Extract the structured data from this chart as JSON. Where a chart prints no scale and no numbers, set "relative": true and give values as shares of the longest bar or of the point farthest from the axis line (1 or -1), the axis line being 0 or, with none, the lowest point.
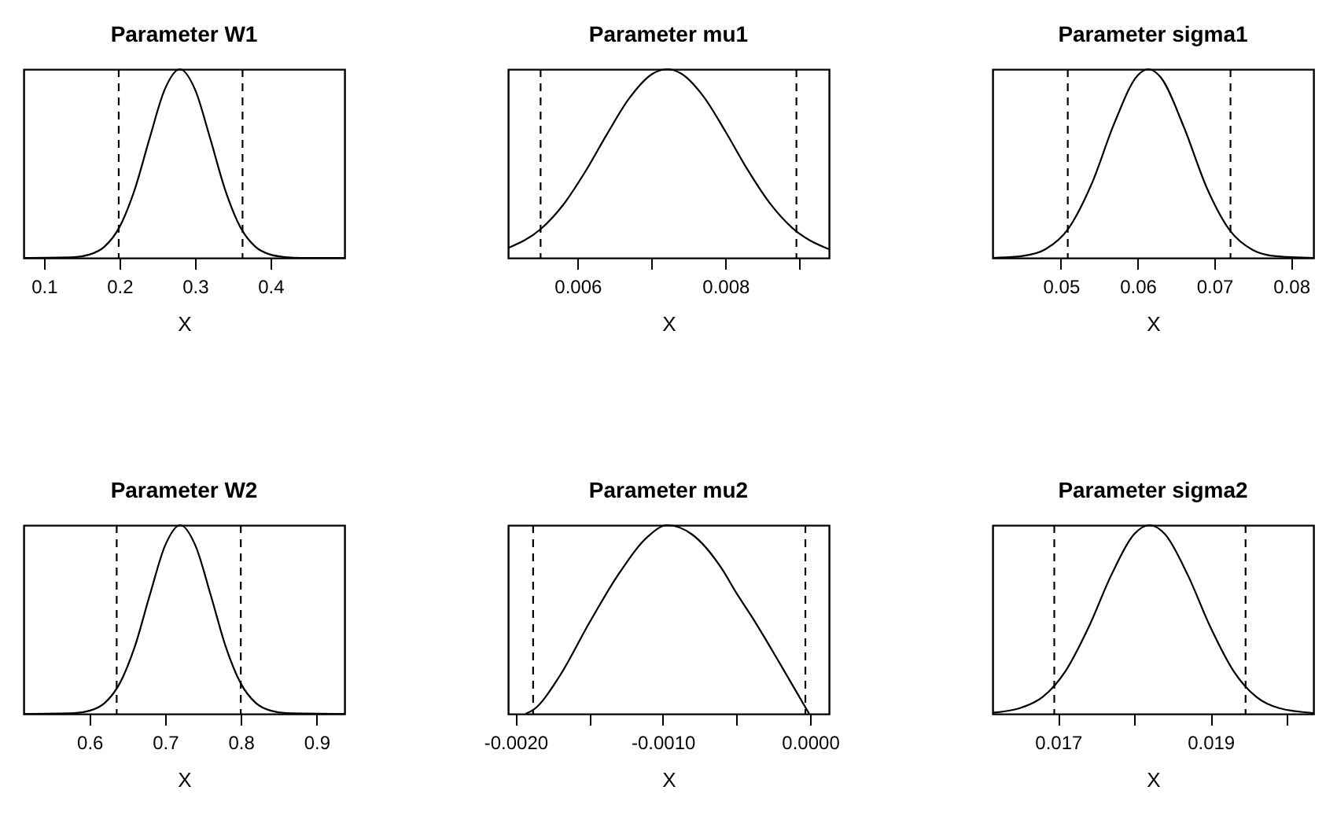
{
  "chart_data": [
    {
      "type": "line",
      "title": "Parameter W1",
      "xlabel": "X",
      "relative": true,
      "xlim": [
        0.073,
        0.498
      ],
      "xticks": [
        0.1,
        0.2,
        0.3,
        0.4
      ],
      "line_style": "solid",
      "marker": "none",
      "grid": false,
      "ref_lines": [
        {
          "axis": "x",
          "value": 0.199,
          "line_style": "dashed",
          "color": "#000000"
        },
        {
          "axis": "x",
          "value": 0.363,
          "line_style": "dashed",
          "color": "#000000"
        }
      ],
      "series": [
        {
          "color": "#000000",
          "x": [
            0.073,
            0.14,
            0.16,
            0.18,
            0.2,
            0.22,
            0.24,
            0.26,
            0.28,
            0.3,
            0.32,
            0.34,
            0.36,
            0.38,
            0.4,
            0.42,
            0.44,
            0.498
          ],
          "values": [
            0,
            0.004,
            0.017,
            0.059,
            0.163,
            0.36,
            0.635,
            0.893,
            1,
            0.893,
            0.635,
            0.36,
            0.163,
            0.059,
            0.017,
            0.004,
            0,
            0
          ]
        }
      ]
    },
    {
      "type": "line",
      "title": "Parameter mu1",
      "xlabel": "X",
      "relative": true,
      "xlim": [
        0.00506,
        0.0094
      ],
      "xticks": [
        0.006,
        {
          "value": 0.007,
          "label": null
        },
        0.008,
        {
          "value": 0.009,
          "label": null
        }
      ],
      "line_style": "solid",
      "marker": "none",
      "grid": false,
      "ref_lines": [
        {
          "axis": "x",
          "value": 0.0055,
          "line_style": "dashed",
          "color": "#000000"
        },
        {
          "axis": "x",
          "value": 0.00896,
          "line_style": "dashed",
          "color": "#000000"
        }
      ],
      "series": [
        {
          "color": "#000000",
          "x": [
            0.00506,
            0.0055,
            0.0058,
            0.0061,
            0.0064,
            0.0067,
            0.007,
            0.00721,
            0.0074,
            0.0077,
            0.008,
            0.0083,
            0.0086,
            0.0089,
            0.0094
          ],
          "values": [
            0.052,
            0.152,
            0.278,
            0.454,
            0.657,
            0.846,
            0.972,
            1,
            0.977,
            0.857,
            0.67,
            0.467,
            0.29,
            0.16,
            0.046
          ]
        }
      ]
    },
    {
      "type": "line",
      "title": "Parameter sigma1",
      "xlabel": "X",
      "relative": true,
      "xlim": [
        0.0411,
        0.0829
      ],
      "xticks": [
        0.05,
        0.06,
        0.07,
        0.08
      ],
      "line_style": "solid",
      "marker": "none",
      "grid": false,
      "ref_lines": [
        {
          "axis": "x",
          "value": 0.0509,
          "line_style": "dashed",
          "color": "#000000"
        },
        {
          "axis": "x",
          "value": 0.0721,
          "line_style": "dashed",
          "color": "#000000"
        }
      ],
      "series": [
        {
          "color": "#000000",
          "x": [
            0.0411,
            0.045,
            0.048,
            0.051,
            0.054,
            0.057,
            0.06,
            0.0614,
            0.063,
            0.066,
            0.069,
            0.072,
            0.075,
            0.078,
            0.0829
          ],
          "values": [
            0,
            0.01,
            0.046,
            0.156,
            0.391,
            0.717,
            0.967,
            1,
            0.957,
            0.696,
            0.372,
            0.146,
            0.042,
            0.009,
            0
          ]
        }
      ]
    },
    {
      "type": "line",
      "title": "Parameter W2",
      "xlabel": "X",
      "relative": true,
      "xlim": [
        0.513,
        0.937
      ],
      "xticks": [
        0.6,
        0.7,
        0.8,
        0.9
      ],
      "line_style": "solid",
      "marker": "none",
      "grid": false,
      "ref_lines": [
        {
          "axis": "x",
          "value": 0.636,
          "line_style": "dashed",
          "color": "#000000"
        },
        {
          "axis": "x",
          "value": 0.8,
          "line_style": "dashed",
          "color": "#000000"
        }
      ],
      "series": [
        {
          "color": "#000000",
          "x": [
            0.513,
            0.58,
            0.6,
            0.62,
            0.64,
            0.66,
            0.68,
            0.7,
            0.72,
            0.74,
            0.76,
            0.78,
            0.8,
            0.82,
            0.84,
            0.86,
            0.937
          ],
          "values": [
            0,
            0.004,
            0.016,
            0.057,
            0.161,
            0.357,
            0.633,
            0.892,
            1,
            0.892,
            0.633,
            0.357,
            0.161,
            0.057,
            0.016,
            0.004,
            0
          ]
        }
      ]
    },
    {
      "type": "line",
      "title": "Parameter mu2",
      "xlabel": "X",
      "relative": true,
      "xlim": [
        -0.00205,
        0.000128
      ],
      "xticks": [
        {
          "value": -0.002,
          "label": "-0.0020"
        },
        {
          "value": -0.0015,
          "label": null
        },
        {
          "value": -0.001,
          "label": "-0.0010"
        },
        {
          "value": -0.0005,
          "label": null
        },
        {
          "value": 0,
          "label": "0.0000"
        }
      ],
      "line_style": "solid",
      "marker": "none",
      "grid": false,
      "ref_lines": [
        {
          "axis": "x",
          "value": -0.00188,
          "line_style": "dashed",
          "color": "#000000"
        },
        {
          "axis": "x",
          "value": -3.2e-05,
          "line_style": "dashed",
          "color": "#000000"
        }
      ],
      "series": [
        {
          "color": "#000000",
          "x": [
            -0.00193,
            -0.00188,
            -0.0017,
            -0.0015,
            -0.0013,
            -0.0011,
            -0.00097,
            -0.0008,
            -0.0006,
            -0.0005,
            -0.0004,
            -0.0002,
            -6e-06
          ],
          "values": [
            0,
            0.02,
            0.2,
            0.48,
            0.74,
            0.94,
            1,
            0.95,
            0.77,
            0.64,
            0.52,
            0.26,
            0
          ]
        }
      ]
    },
    {
      "type": "line",
      "title": "Parameter sigma2",
      "xlabel": "X",
      "relative": true,
      "xlim": [
        0.01614,
        0.02035
      ],
      "xticks": [
        0.017,
        {
          "value": 0.018,
          "label": null
        },
        0.019,
        {
          "value": 0.02,
          "label": null
        }
      ],
      "line_style": "solid",
      "marker": "none",
      "grid": false,
      "ref_lines": [
        {
          "axis": "x",
          "value": 0.01695,
          "line_style": "dashed",
          "color": "#000000"
        },
        {
          "axis": "x",
          "value": 0.01946,
          "line_style": "dashed",
          "color": "#000000"
        }
      ],
      "series": [
        {
          "color": "#000000",
          "x": [
            0.01614,
            0.0165,
            0.0168,
            0.0171,
            0.0174,
            0.0177,
            0.018,
            0.0182,
            0.0184,
            0.0187,
            0.019,
            0.0193,
            0.0196,
            0.0199,
            0.02035
          ],
          "values": [
            0.006,
            0.03,
            0.09,
            0.228,
            0.458,
            0.737,
            0.953,
            1,
            0.953,
            0.737,
            0.458,
            0.228,
            0.09,
            0.03,
            0.004
          ]
        }
      ]
    }
  ]
}
